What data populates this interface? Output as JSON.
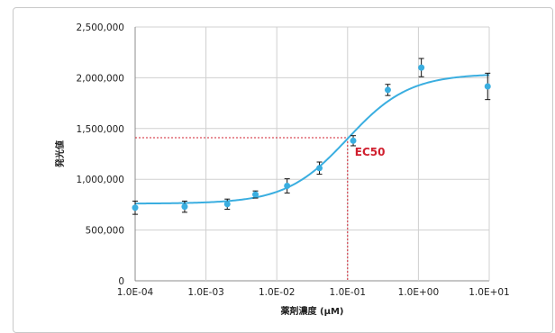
{
  "chart_data": {
    "type": "scatter",
    "title": "",
    "xlabel": "薬剤濃度 (μM)",
    "ylabel": "発光値",
    "x_scale": "log",
    "xlim": [
      0.0001,
      10
    ],
    "ylim": [
      0,
      2500000
    ],
    "grid": true,
    "x_ticks": [
      0.0001,
      0.001,
      0.01,
      0.1,
      1,
      10
    ],
    "x_tick_labels": [
      "1.0E-04",
      "1.0E-03",
      "1.0E-02",
      "1.0E-01",
      "1.0E+00",
      "1.0E+01"
    ],
    "y_ticks": [
      0,
      500000,
      1000000,
      1500000,
      2000000,
      2500000
    ],
    "y_tick_labels": [
      "0",
      "500,000",
      "1,000,000",
      "1,500,000",
      "2,000,000",
      "2,500,000"
    ],
    "series": [
      {
        "x": [
          0.0001,
          0.0005,
          0.002,
          0.005,
          0.014,
          0.04,
          0.12,
          0.37,
          1.1,
          9.5
        ],
        "y": [
          720000,
          730000,
          755000,
          850000,
          935000,
          1110000,
          1380000,
          1880000,
          2100000,
          1915000
        ],
        "error": [
          65000,
          55000,
          50000,
          35000,
          70000,
          60000,
          50000,
          55000,
          90000,
          130000
        ],
        "color": "#3aaee0"
      }
    ],
    "fit_curve": {
      "bottom": 760000,
      "top": 2040000,
      "ec50": 0.1,
      "hill": 1.0,
      "color": "#3aaee0"
    },
    "annotation": {
      "label": "EC50",
      "x": 0.1,
      "y": 1410000,
      "color": "#d0202f"
    }
  }
}
